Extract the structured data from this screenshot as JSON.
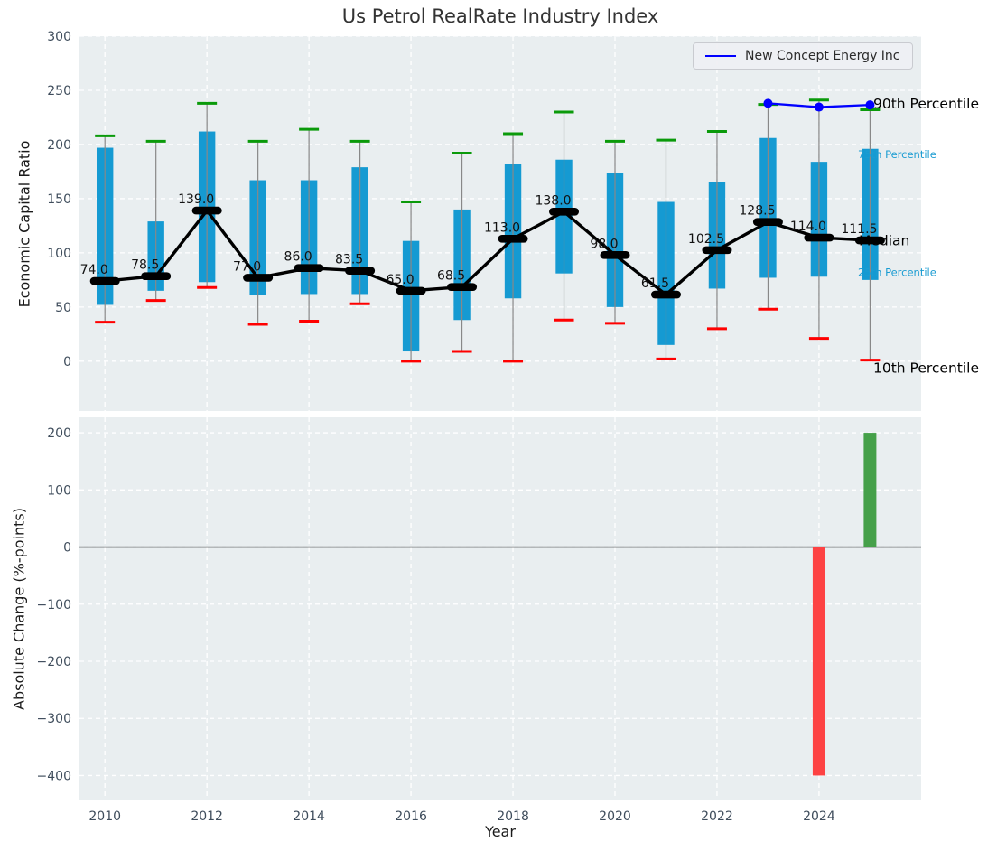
{
  "title": "Us Petrol RealRate Industry Index",
  "legend": {
    "label": "New Concept Energy Inc"
  },
  "axes": {
    "top_ylabel": "Economic Capital Ratio",
    "bottom_ylabel": "Absolute Change (%-points)",
    "xlabel": "Year"
  },
  "colors": {
    "box": "#159ad2",
    "p90_cap": "#0a9a0a",
    "p10_cap": "#ff0000",
    "whisker": "#888888",
    "median": "#000000",
    "company_line": "#0000ff",
    "change_up": "#45a049",
    "change_down": "#fd4243",
    "plot_bg": "#e9eef0",
    "grid": "#ffffff",
    "tick_label": "#3f4d5c",
    "annotation_teal": "#1b9cd2",
    "title_color": "#333333"
  },
  "chart_data": [
    {
      "type": "box-line",
      "name": "economic-capital-ratio-percentiles",
      "title": "Us Petrol RealRate Industry Index",
      "ylabel": "Economic Capital Ratio",
      "ylim": [
        -46,
        300
      ],
      "yticks": [
        0,
        50,
        100,
        150,
        200,
        250,
        300
      ],
      "xticks": [
        2010,
        2012,
        2014,
        2016,
        2018,
        2020,
        2022,
        2024
      ],
      "grid": true,
      "legend_position": "upper right",
      "years": [
        2010,
        2011,
        2012,
        2013,
        2014,
        2015,
        2016,
        2017,
        2018,
        2019,
        2020,
        2021,
        2022,
        2023,
        2024,
        2025
      ],
      "series": [
        {
          "name": "90th Percentile",
          "values": [
            208,
            203,
            238,
            203,
            214,
            203,
            147,
            192,
            210,
            230,
            203,
            204,
            212,
            237,
            241,
            232
          ]
        },
        {
          "name": "75th Percentile",
          "values": [
            197,
            129,
            212,
            167,
            167,
            179,
            111,
            140,
            182,
            186,
            174,
            147,
            165,
            206,
            184,
            196
          ]
        },
        {
          "name": "Median",
          "values": [
            74,
            78.5,
            139,
            77,
            86,
            83.5,
            65,
            68.5,
            113,
            138,
            98,
            61.5,
            102.5,
            128.5,
            114,
            111.5
          ]
        },
        {
          "name": "25th Percentile",
          "values": [
            52,
            65,
            73,
            61,
            62,
            62,
            9,
            38,
            58,
            81,
            50,
            15,
            67,
            77,
            78,
            75
          ]
        },
        {
          "name": "10th Percentile",
          "values": [
            36,
            56,
            68,
            34,
            37,
            53,
            0,
            9,
            0,
            38,
            35,
            2,
            30,
            48,
            21,
            1
          ]
        },
        {
          "name": "New Concept Energy Inc",
          "x": [
            2023,
            2024,
            2025
          ],
          "values": [
            238,
            234.5,
            236.5
          ]
        }
      ],
      "median_labels": [
        "74.0",
        "78.5",
        "139.0",
        "77.0",
        "86.0",
        "83.5",
        "65.0",
        "68.5",
        "113.0",
        "138.0",
        "98.0",
        "61.5",
        "102.5",
        "128.5",
        "114.0",
        "111.5"
      ],
      "annotations": [
        {
          "label": "90th Percentile",
          "value": 238,
          "color": "#000000",
          "size": 15.5,
          "x": 967
        },
        {
          "label": "75th Percentile",
          "value": 191,
          "color": "#1b9cd2",
          "size": 11.5,
          "x": 950
        },
        {
          "label": "Median",
          "value": 111.5,
          "color": "#000000",
          "size": 15.5,
          "x": 951
        },
        {
          "label": "25th Percentile",
          "value": 82,
          "color": "#1b9cd2",
          "size": 11.5,
          "x": 950
        },
        {
          "label": "10th Percentile",
          "value": -6,
          "color": "#000000",
          "size": 15.5,
          "x": 967
        }
      ]
    },
    {
      "type": "bar",
      "name": "absolute-change",
      "ylabel": "Absolute Change (%-points)",
      "xlabel": "Year",
      "ylim": [
        -442,
        227
      ],
      "yticks": [
        200,
        100,
        0,
        -100,
        -200,
        -300,
        -400
      ],
      "xticks": [
        2010,
        2012,
        2014,
        2016,
        2018,
        2020,
        2022,
        2024
      ],
      "grid": true,
      "zero_line": true,
      "categories": [
        2024,
        2025
      ],
      "values": [
        -400,
        200
      ],
      "bar_colors": [
        "#fd4243",
        "#45a049"
      ]
    }
  ]
}
